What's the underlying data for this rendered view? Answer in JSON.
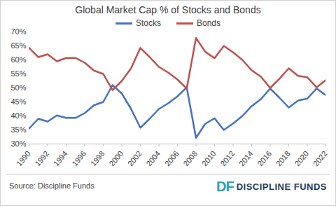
{
  "chart_data": {
    "type": "line",
    "title": "Global Market Cap % of Stocks and Bonds",
    "source": "Source: Discipline Funds",
    "logo": [
      "DF",
      "DISCIPLINE FUNDS"
    ],
    "x": [
      1990,
      1991,
      1992,
      1993,
      1994,
      1995,
      1996,
      1997,
      1998,
      1999,
      2000,
      2001,
      2002,
      2003,
      2004,
      2005,
      2006,
      2007,
      2008,
      2009,
      2010,
      2011,
      2012,
      2013,
      2014,
      2015,
      2016,
      2017,
      2018,
      2019,
      2020,
      2021,
      2022
    ],
    "series": [
      {
        "name": "Stocks",
        "color": "#4472c4",
        "values": [
          35.5,
          39,
          38,
          40.2,
          39.3,
          39.3,
          41,
          43.8,
          45,
          51,
          48,
          42.5,
          35.8,
          39,
          42.5,
          44.5,
          47,
          50.2,
          32.2,
          37.2,
          39.2,
          35,
          37.3,
          40,
          43.5,
          46,
          49.8,
          46.5,
          43,
          45.5,
          46.2,
          49.8,
          47.4
        ]
      },
      {
        "name": "Bonds",
        "color": "#c0504d",
        "values": [
          64.3,
          61,
          62,
          59.5,
          60.7,
          60.7,
          59,
          56.2,
          55,
          49.2,
          52.5,
          57,
          64.3,
          61,
          57.5,
          55.5,
          53,
          49.8,
          67.8,
          62.9,
          60.6,
          65,
          62.7,
          60,
          56.3,
          54,
          50,
          53.3,
          57,
          54.3,
          53.8,
          50.2,
          52.8
        ]
      }
    ],
    "xlim": [
      1990,
      2022
    ],
    "xticks": [
      1990,
      1992,
      1994,
      1996,
      1998,
      2000,
      2002,
      2004,
      2006,
      2008,
      2010,
      2012,
      2014,
      2016,
      2018,
      2020,
      2022
    ],
    "ylim": [
      30,
      70
    ],
    "yticks": [
      {
        "value": 30,
        "label": "30%"
      },
      {
        "value": 35,
        "label": "35%"
      },
      {
        "value": 40,
        "label": "40%"
      },
      {
        "value": 45,
        "label": "45%"
      },
      {
        "value": 50,
        "label": "50%"
      },
      {
        "value": 55,
        "label": "55%"
      },
      {
        "value": 60,
        "label": "60%"
      },
      {
        "value": 65,
        "label": "65%"
      },
      {
        "value": 70,
        "label": "70%"
      }
    ],
    "grid": false,
    "legend": "top"
  }
}
